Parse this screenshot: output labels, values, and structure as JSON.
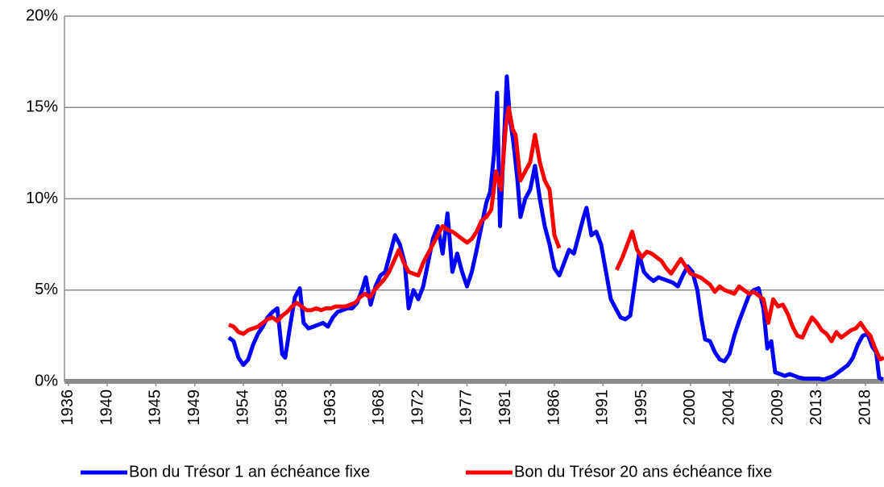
{
  "chart_data": {
    "type": "line",
    "xlim": [
      1935.6,
      2019.9
    ],
    "xticks": [
      1936,
      1940,
      1945,
      1949,
      1954,
      1958,
      1963,
      1968,
      1972,
      1977,
      1981,
      1986,
      1991,
      1995,
      2000,
      2004,
      2009,
      2013,
      2018
    ],
    "ylim": [
      0,
      20
    ],
    "yticks": [
      {
        "value": 0,
        "label": "0%"
      },
      {
        "value": 5,
        "label": "5%"
      },
      {
        "value": 10,
        "label": "10%"
      },
      {
        "value": 15,
        "label": "15%"
      },
      {
        "value": 20,
        "label": "20%"
      }
    ],
    "grid": true,
    "legend": "bottom",
    "series": [
      {
        "name": "Bon du Trésor 1 an échéance fixe",
        "color": "#0000ff",
        "x": [
          1952.5,
          1953,
          1953.5,
          1954,
          1954.5,
          1955,
          1955.5,
          1956,
          1956.5,
          1957,
          1957.5,
          1958,
          1958.3,
          1958.8,
          1959.3,
          1959.8,
          1960.2,
          1960.7,
          1961.2,
          1961.7,
          1962.2,
          1962.7,
          1963.2,
          1963.7,
          1964.2,
          1964.7,
          1965.2,
          1965.7,
          1966.2,
          1966.6,
          1967.1,
          1967.6,
          1968.1,
          1968.6,
          1969.1,
          1969.6,
          1970.1,
          1970.6,
          1971,
          1971.5,
          1972,
          1972.5,
          1973,
          1973.5,
          1974,
          1974.5,
          1975,
          1975.5,
          1976,
          1976.5,
          1977,
          1977.5,
          1978,
          1978.5,
          1979,
          1979.4,
          1979.8,
          1980.1,
          1980.4,
          1980.8,
          1981.1,
          1981.4,
          1981.8,
          1982.2,
          1982.5,
          1983,
          1983.5,
          1984,
          1984.5,
          1985,
          1985.5,
          1986,
          1986.5,
          1987,
          1987.5,
          1988,
          1988.5,
          1989,
          1989.3,
          1989.8,
          1990.3,
          1990.8,
          1991.3,
          1991.8,
          1992.3,
          1992.8,
          1993.3,
          1993.8,
          1994.3,
          1994.7,
          1995.2,
          1995.7,
          1996.2,
          1996.7,
          1997.2,
          1997.7,
          1998.2,
          1998.7,
          1999.2,
          1999.7,
          2000.2,
          2000.7,
          2001.1,
          2001.5,
          2002,
          2002.5,
          2003,
          2003.5,
          2004,
          2004.5,
          2005,
          2005.5,
          2006,
          2006.5,
          2007,
          2007.5,
          2007.9,
          2008.3,
          2008.7,
          2009.2,
          2009.7,
          2010.2,
          2010.7,
          2011.2,
          2011.7,
          2012.2,
          2012.7,
          2013.2,
          2013.7,
          2014.2,
          2014.7,
          2015.2,
          2015.7,
          2016.2,
          2016.7,
          2017.2,
          2017.7,
          2018.2,
          2018.7,
          2019.1,
          2019.4,
          2019.8
        ],
        "values": [
          2.4,
          2.2,
          1.3,
          0.9,
          1.2,
          2.0,
          2.6,
          3.0,
          3.5,
          3.8,
          4.0,
          1.5,
          1.3,
          3.0,
          4.6,
          5.1,
          3.2,
          2.9,
          3.0,
          3.1,
          3.2,
          3.0,
          3.5,
          3.8,
          3.9,
          4.0,
          4.0,
          4.3,
          5.0,
          5.7,
          4.2,
          5.2,
          5.8,
          6.0,
          7.0,
          8.0,
          7.5,
          6.5,
          4.0,
          5.0,
          4.5,
          5.2,
          6.5,
          7.8,
          8.5,
          7.0,
          9.2,
          6.0,
          7.0,
          6.0,
          5.2,
          6.0,
          7.2,
          8.5,
          9.8,
          10.4,
          12.5,
          15.8,
          8.5,
          13.0,
          16.7,
          14.5,
          13.0,
          11.0,
          9.0,
          10.0,
          10.5,
          11.8,
          10.0,
          8.5,
          7.5,
          6.2,
          5.8,
          6.5,
          7.2,
          7.0,
          8.0,
          9.0,
          9.5,
          8.0,
          8.2,
          7.5,
          6.0,
          4.5,
          4.0,
          3.5,
          3.4,
          3.6,
          5.5,
          7.0,
          6.0,
          5.7,
          5.5,
          5.7,
          5.6,
          5.5,
          5.4,
          5.2,
          5.8,
          6.3,
          6.0,
          5.0,
          3.5,
          2.3,
          2.2,
          1.6,
          1.2,
          1.1,
          1.5,
          2.5,
          3.3,
          4.0,
          4.7,
          5.0,
          5.1,
          4.0,
          1.8,
          2.2,
          0.5,
          0.4,
          0.3,
          0.4,
          0.3,
          0.2,
          0.15,
          0.15,
          0.15,
          0.15,
          0.1,
          0.2,
          0.3,
          0.5,
          0.7,
          0.9,
          1.3,
          2.0,
          2.5,
          2.6,
          1.9,
          1.6,
          0.2,
          0.1
        ]
      },
      {
        "name": "Bon du Trésor 20 ans échéance fixe",
        "color": "#ff0000",
        "x": [
          1952.5,
          1953,
          1953.5,
          1954,
          1954.5,
          1955,
          1955.5,
          1956,
          1956.5,
          1957,
          1957.5,
          1958,
          1958.5,
          1959,
          1959.5,
          1960,
          1960.5,
          1961,
          1961.5,
          1962,
          1962.5,
          1963,
          1963.5,
          1964,
          1964.5,
          1965,
          1965.5,
          1966,
          1966.5,
          1967,
          1967.5,
          1968,
          1968.5,
          1969,
          1969.5,
          1970,
          1970.5,
          1971,
          1971.5,
          1972,
          1972.5,
          1973,
          1973.5,
          1974,
          1974.5,
          1975,
          1975.5,
          1976,
          1976.5,
          1977,
          1977.5,
          1978,
          1978.5,
          1979,
          1979.5,
          1980,
          1980.5,
          1981,
          1981.3,
          1981.7,
          1982,
          1982.5,
          1983,
          1983.5,
          1984,
          1984.5,
          1985,
          1985.5,
          1986,
          1986.5,
          1989,
          1992.4,
          1993,
          1993.5,
          1994,
          1994.5,
          1995,
          1995.5,
          1996,
          1996.5,
          1997,
          1997.5,
          1998,
          1998.5,
          1999,
          1999.5,
          2000,
          2000.5,
          2001,
          2001.5,
          2002,
          2002.5,
          2003,
          2003.5,
          2004,
          2004.5,
          2005,
          2005.5,
          2006,
          2006.5,
          2007,
          2007.5,
          2008,
          2008.5,
          2009,
          2009.5,
          2010,
          2010.5,
          2011,
          2011.5,
          2012,
          2012.5,
          2013,
          2013.5,
          2014,
          2014.5,
          2015,
          2015.5,
          2016,
          2016.5,
          2017,
          2017.5,
          2018,
          2018.5,
          2019,
          2019.5,
          2019.9
        ],
        "values": [
          3.1,
          3.0,
          2.7,
          2.6,
          2.8,
          2.9,
          3.0,
          3.2,
          3.4,
          3.5,
          3.3,
          3.6,
          3.8,
          4.1,
          4.3,
          4.1,
          3.9,
          3.9,
          4.0,
          3.9,
          4.0,
          4.0,
          4.1,
          4.1,
          4.1,
          4.2,
          4.3,
          4.6,
          4.8,
          4.6,
          5.0,
          5.3,
          5.6,
          6.0,
          6.6,
          7.2,
          6.5,
          6.0,
          5.9,
          5.8,
          6.5,
          7.0,
          7.5,
          8.0,
          8.5,
          8.3,
          8.2,
          8.0,
          7.8,
          7.6,
          7.8,
          8.2,
          8.8,
          9.0,
          9.4,
          11.5,
          10.5,
          14.0,
          15.0,
          13.8,
          13.5,
          11.0,
          11.5,
          12.0,
          13.5,
          12.0,
          11.0,
          10.5,
          8.0,
          7.3,
          null,
          6.1,
          6.8,
          7.5,
          8.2,
          7.2,
          6.8,
          7.1,
          7.0,
          6.8,
          6.6,
          6.2,
          5.9,
          6.3,
          6.7,
          6.3,
          5.9,
          5.8,
          5.7,
          5.5,
          5.3,
          4.9,
          5.2,
          5.0,
          4.9,
          4.8,
          5.2,
          5.0,
          4.8,
          4.9,
          4.7,
          4.5,
          3.2,
          4.5,
          4.1,
          4.2,
          3.7,
          3.0,
          2.5,
          2.4,
          3.0,
          3.5,
          3.2,
          2.8,
          2.6,
          2.2,
          2.7,
          2.4,
          2.6,
          2.8,
          2.9,
          3.2,
          2.8,
          2.5,
          1.8,
          1.2,
          1.3
        ]
      }
    ]
  }
}
